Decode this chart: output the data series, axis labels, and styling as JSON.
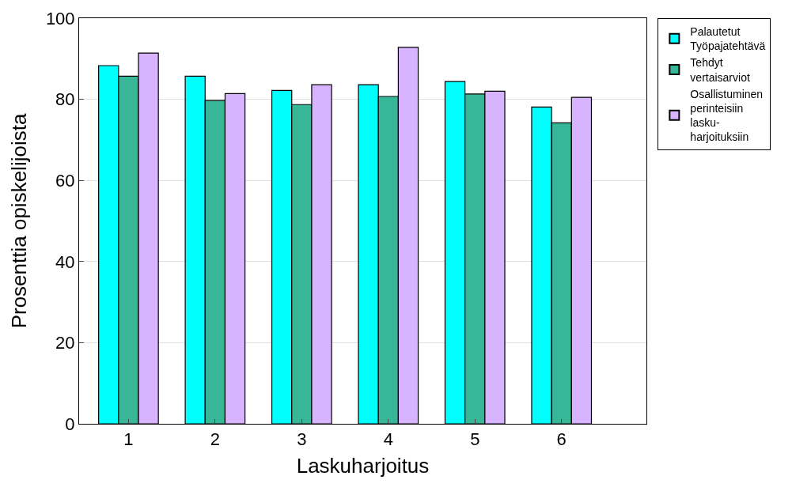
{
  "chart_data": {
    "type": "bar",
    "xlabel": "Laskuharjoitus",
    "ylabel": "Prosenttia opiskelijoista",
    "categories": [
      "1",
      "2",
      "3",
      "4",
      "5",
      "6"
    ],
    "series": [
      {
        "name": "Palautetut\nTyöpajatehtävä",
        "color": "#00ffff",
        "values": [
          88.3,
          85.7,
          82.2,
          83.6,
          84.4,
          78.1
        ]
      },
      {
        "name": "Tehdyt\nvertaisarviot",
        "color": "#38b698",
        "values": [
          85.7,
          79.7,
          78.7,
          80.7,
          81.3,
          74.2
        ]
      },
      {
        "name": "Osallistuminen\nperinteisiin\nlasku-\nharjoituksiin",
        "color": "#d8b3ff",
        "values": [
          91.4,
          81.4,
          83.6,
          92.8,
          82.0,
          80.5
        ]
      }
    ],
    "ylim": [
      0,
      100
    ],
    "yticks": [
      0,
      20,
      40,
      60,
      80,
      100
    ],
    "grid": "y",
    "legend": "top right"
  }
}
